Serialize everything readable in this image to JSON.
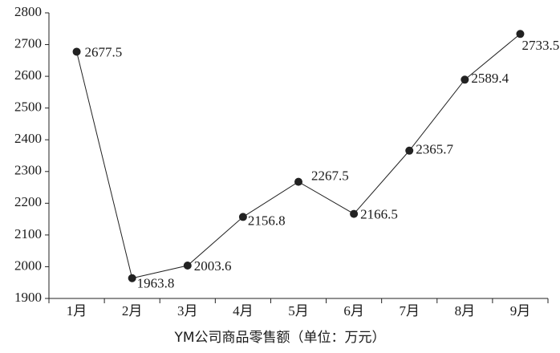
{
  "chart_data": {
    "type": "line",
    "x_label": "YM公司商品零售额（单位：万元）",
    "categories": [
      "1月",
      "2月",
      "3月",
      "4月",
      "5月",
      "6月",
      "7月",
      "8月",
      "9月"
    ],
    "values": [
      2677.5,
      1963.8,
      2003.6,
      2156.8,
      2267.5,
      2166.5,
      2365.7,
      2589.4,
      2733.5
    ],
    "color": "#222222",
    "ylim": [
      1900,
      2800
    ],
    "yticks": [
      1900,
      2000,
      2100,
      2200,
      2300,
      2400,
      2500,
      2600,
      2700,
      2800
    ],
    "grid": false
  }
}
